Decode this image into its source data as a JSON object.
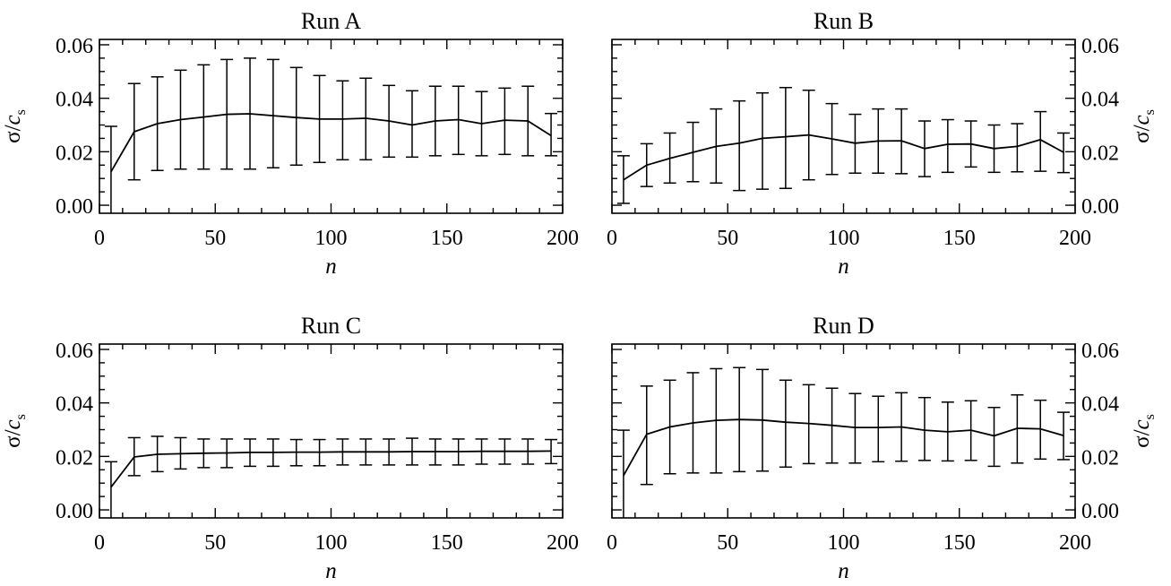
{
  "figure": {
    "panel_count": 4
  },
  "chart_data": [
    {
      "type": "line",
      "title": "Run A",
      "xlabel": "n",
      "ylabel": {
        "sigma": "σ",
        "slash": "/",
        "c": "c",
        "sub": "s"
      },
      "y_axis_side": "left",
      "xlim": [
        0,
        200
      ],
      "ylim": [
        -0.003,
        0.062
      ],
      "xticks": [
        "0",
        "50",
        "100",
        "150",
        "200"
      ],
      "yticks": [
        "0.00",
        "0.02",
        "0.04",
        "0.06"
      ],
      "grid": false,
      "series": [
        {
          "x": [
            5,
            15,
            25,
            35,
            45,
            55,
            65,
            75,
            85,
            95,
            105,
            115,
            125,
            135,
            145,
            155,
            165,
            175,
            185,
            195
          ],
          "y": [
            0.0125,
            0.0275,
            0.0305,
            0.032,
            0.033,
            0.034,
            0.0342,
            0.0335,
            0.0328,
            0.0322,
            0.0322,
            0.0325,
            0.0315,
            0.03,
            0.0315,
            0.032,
            0.0305,
            0.0318,
            0.0315,
            0.026
          ],
          "yerr_low": [
            -0.003,
            0.0095,
            0.013,
            0.0135,
            0.0135,
            0.0135,
            0.0135,
            0.014,
            0.015,
            0.016,
            0.017,
            0.017,
            0.018,
            0.018,
            0.0185,
            0.019,
            0.0185,
            0.019,
            0.0185,
            0.0185
          ],
          "yerr_high": [
            0.0295,
            0.0455,
            0.048,
            0.0505,
            0.0525,
            0.0545,
            0.055,
            0.0545,
            0.0515,
            0.0485,
            0.0465,
            0.0475,
            0.0448,
            0.0428,
            0.0445,
            0.0445,
            0.0425,
            0.0438,
            0.0445,
            0.0343
          ]
        }
      ]
    },
    {
      "type": "line",
      "title": "Run B",
      "xlabel": "n",
      "ylabel": {
        "sigma": "σ",
        "slash": "/",
        "c": "c",
        "sub": "s"
      },
      "y_axis_side": "right",
      "xlim": [
        0,
        200
      ],
      "ylim": [
        -0.003,
        0.062
      ],
      "xticks": [
        "0",
        "50",
        "100",
        "150",
        "200"
      ],
      "yticks": [
        "0.00",
        "0.02",
        "0.04",
        "0.06"
      ],
      "grid": false,
      "series": [
        {
          "x": [
            5,
            15,
            25,
            35,
            45,
            55,
            65,
            75,
            85,
            95,
            105,
            115,
            125,
            135,
            145,
            155,
            165,
            175,
            185,
            195
          ],
          "y": [
            0.0095,
            0.015,
            0.0175,
            0.0198,
            0.022,
            0.0232,
            0.025,
            0.0256,
            0.0263,
            0.0248,
            0.0232,
            0.024,
            0.0241,
            0.0212,
            0.0228,
            0.0229,
            0.0212,
            0.022,
            0.0245,
            0.0198
          ],
          "yerr_low": [
            0.0007,
            0.007,
            0.0083,
            0.0088,
            0.0083,
            0.0055,
            0.006,
            0.0063,
            0.0095,
            0.0115,
            0.012,
            0.012,
            0.0118,
            0.0107,
            0.0123,
            0.0143,
            0.0123,
            0.0125,
            0.0127,
            0.0122
          ],
          "yerr_high": [
            0.0185,
            0.023,
            0.027,
            0.031,
            0.036,
            0.039,
            0.042,
            0.044,
            0.043,
            0.038,
            0.034,
            0.036,
            0.036,
            0.0315,
            0.032,
            0.0315,
            0.03,
            0.0305,
            0.035,
            0.027
          ]
        }
      ]
    },
    {
      "type": "line",
      "title": "Run C",
      "xlabel": "n",
      "ylabel": {
        "sigma": "σ",
        "slash": "/",
        "c": "c",
        "sub": "s"
      },
      "y_axis_side": "left",
      "xlim": [
        0,
        200
      ],
      "ylim": [
        -0.003,
        0.062
      ],
      "xticks": [
        "0",
        "50",
        "100",
        "150",
        "200"
      ],
      "yticks": [
        "0.00",
        "0.02",
        "0.04",
        "0.06"
      ],
      "grid": false,
      "series": [
        {
          "x": [
            5,
            15,
            25,
            35,
            45,
            55,
            65,
            75,
            85,
            95,
            105,
            115,
            125,
            135,
            145,
            155,
            165,
            175,
            185,
            195
          ],
          "y": [
            0.0085,
            0.0198,
            0.0208,
            0.021,
            0.0212,
            0.0213,
            0.0215,
            0.0215,
            0.0216,
            0.0216,
            0.0217,
            0.0217,
            0.0217,
            0.0218,
            0.0218,
            0.0218,
            0.0219,
            0.0219,
            0.0219,
            0.022
          ],
          "yerr_low": [
            -0.003,
            0.0128,
            0.0143,
            0.0153,
            0.0158,
            0.0158,
            0.0163,
            0.0163,
            0.0165,
            0.0165,
            0.0168,
            0.0168,
            0.0168,
            0.0168,
            0.0168,
            0.0168,
            0.0171,
            0.0171,
            0.0171,
            0.0173
          ],
          "yerr_high": [
            0.018,
            0.027,
            0.0275,
            0.027,
            0.0265,
            0.0265,
            0.0265,
            0.0265,
            0.0263,
            0.0263,
            0.0265,
            0.0265,
            0.0265,
            0.0268,
            0.0265,
            0.0265,
            0.0265,
            0.0265,
            0.0265,
            0.0263
          ]
        }
      ]
    },
    {
      "type": "line",
      "title": "Run D",
      "xlabel": "n",
      "ylabel": {
        "sigma": "σ",
        "slash": "/",
        "c": "c",
        "sub": "s"
      },
      "y_axis_side": "right",
      "xlim": [
        0,
        200
      ],
      "ylim": [
        -0.003,
        0.062
      ],
      "xticks": [
        "0",
        "50",
        "100",
        "150",
        "200"
      ],
      "yticks": [
        "0.00",
        "0.02",
        "0.04",
        "0.06"
      ],
      "grid": false,
      "series": [
        {
          "x": [
            5,
            15,
            25,
            35,
            45,
            55,
            65,
            75,
            85,
            95,
            105,
            115,
            125,
            135,
            145,
            155,
            165,
            175,
            185,
            195
          ],
          "y": [
            0.0128,
            0.0283,
            0.031,
            0.0325,
            0.0335,
            0.0338,
            0.0336,
            0.0328,
            0.0323,
            0.0316,
            0.0308,
            0.0308,
            0.031,
            0.0298,
            0.0292,
            0.0298,
            0.0277,
            0.0305,
            0.0303,
            0.0278
          ],
          "yerr_low": [
            -0.003,
            0.0095,
            0.0135,
            0.0138,
            0.0138,
            0.0143,
            0.0145,
            0.016,
            0.0173,
            0.0175,
            0.0175,
            0.018,
            0.0182,
            0.0185,
            0.0183,
            0.0185,
            0.0163,
            0.0175,
            0.019,
            0.0188
          ],
          "yerr_high": [
            0.0298,
            0.0463,
            0.0485,
            0.0513,
            0.0528,
            0.0532,
            0.0525,
            0.0485,
            0.0468,
            0.0455,
            0.0435,
            0.0425,
            0.0438,
            0.042,
            0.0403,
            0.0408,
            0.0383,
            0.043,
            0.041,
            0.0365
          ]
        }
      ]
    }
  ]
}
